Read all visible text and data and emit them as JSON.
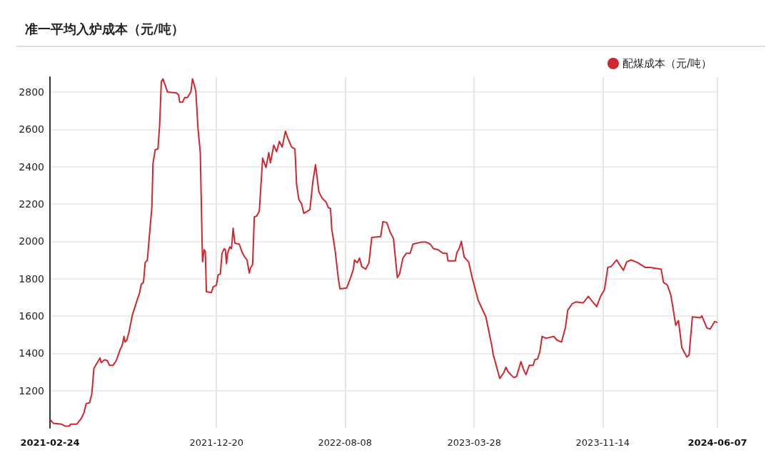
{
  "chart_data": {
    "type": "line",
    "title": "准一平均入炉成本（元/吨）",
    "x": [
      "2021-02-24",
      "2021-03-02",
      "2021-03-17",
      "2021-03-23",
      "2021-03-31",
      "2021-04-02",
      "2021-04-13",
      "2021-04-21",
      "2021-04-26",
      "2021-04-30",
      "2021-05-06",
      "2021-05-10",
      "2021-05-14",
      "2021-05-23",
      "2021-05-25",
      "2021-05-27",
      "2021-06-02",
      "2021-06-07",
      "2021-06-11",
      "2021-06-17",
      "2021-06-23",
      "2021-06-30",
      "2021-07-04",
      "2021-07-07",
      "2021-07-09",
      "2021-07-12",
      "2021-07-16",
      "2021-07-22",
      "2021-07-29",
      "2021-08-04",
      "2021-08-07",
      "2021-08-11",
      "2021-08-14",
      "2021-08-18",
      "2021-08-23",
      "2021-08-26",
      "2021-08-28",
      "2021-09-01",
      "2021-09-06",
      "2021-09-09",
      "2021-09-12",
      "2021-09-15",
      "2021-09-23",
      "2021-10-09",
      "2021-10-13",
      "2021-10-15",
      "2021-10-20",
      "2021-10-24",
      "2021-10-29",
      "2021-11-04",
      "2021-11-07",
      "2021-11-10",
      "2021-11-13",
      "2021-11-17",
      "2021-11-21",
      "2021-11-23",
      "2021-11-25",
      "2021-11-28",
      "2021-11-30",
      "2021-12-02",
      "2021-12-11",
      "2021-12-14",
      "2021-12-20",
      "2021-12-23",
      "2021-12-27",
      "2021-12-30",
      "2022-01-03",
      "2022-01-05",
      "2022-01-07",
      "2022-01-09",
      "2022-01-13",
      "2022-01-16",
      "2022-01-19",
      "2022-01-22",
      "2022-01-30",
      "2022-02-05",
      "2022-02-09",
      "2022-02-13",
      "2022-02-17",
      "2022-02-19",
      "2022-02-23",
      "2022-02-26",
      "2022-03-02",
      "2022-03-07",
      "2022-03-13",
      "2022-03-19",
      "2022-03-24",
      "2022-03-27",
      "2022-04-02",
      "2022-04-07",
      "2022-04-12",
      "2022-04-17",
      "2022-04-23",
      "2022-04-27",
      "2022-05-04",
      "2022-05-10",
      "2022-05-13",
      "2022-05-17",
      "2022-05-22",
      "2022-05-26",
      "2022-06-01",
      "2022-06-06",
      "2022-06-11",
      "2022-06-16",
      "2022-06-22",
      "2022-06-28",
      "2022-07-05",
      "2022-07-09",
      "2022-07-13",
      "2022-07-15",
      "2022-07-21",
      "2022-07-27",
      "2022-07-30",
      "2022-08-11",
      "2022-08-18",
      "2022-08-23",
      "2022-08-25",
      "2022-08-30",
      "2022-09-03",
      "2022-09-07",
      "2022-09-14",
      "2022-09-20",
      "2022-09-25",
      "2022-10-11",
      "2022-10-15",
      "2022-10-22",
      "2022-10-28",
      "2022-11-03",
      "2022-11-10",
      "2022-11-14",
      "2022-11-20",
      "2022-11-26",
      "2022-12-03",
      "2022-12-08",
      "2022-12-22",
      "2023-01-01",
      "2023-01-08",
      "2023-01-14",
      "2023-01-22",
      "2023-01-31",
      "2023-02-07",
      "2023-02-09",
      "2023-02-22",
      "2023-02-25",
      "2023-03-01",
      "2023-03-05",
      "2023-03-10",
      "2023-03-18",
      "2023-03-24",
      "2023-04-04",
      "2023-04-18",
      "2023-04-29",
      "2023-05-01",
      "2023-05-13",
      "2023-05-20",
      "2023-05-24",
      "2023-05-28",
      "2023-06-07",
      "2023-06-12",
      "2023-06-20",
      "2023-06-25",
      "2023-06-29",
      "2023-07-05",
      "2023-07-12",
      "2023-07-15",
      "2023-07-20",
      "2023-07-24",
      "2023-07-28",
      "2023-08-04",
      "2023-08-18",
      "2023-08-24",
      "2023-09-01",
      "2023-09-08",
      "2023-09-12",
      "2023-09-20",
      "2023-09-27",
      "2023-10-10",
      "2023-10-19",
      "2023-10-27",
      "2023-11-03",
      "2023-11-10",
      "2023-11-17",
      "2023-11-23",
      "2023-11-29",
      "2023-12-09",
      "2023-12-14",
      "2023-12-21",
      "2023-12-27",
      "2024-01-04",
      "2024-01-16",
      "2024-01-29",
      "2024-02-07",
      "2024-02-27",
      "2024-03-02",
      "2024-03-09",
      "2024-03-15",
      "2024-03-19",
      "2024-03-24",
      "2024-03-29",
      "2024-04-04",
      "2024-04-13",
      "2024-04-17",
      "2024-04-23",
      "2024-05-07",
      "2024-05-10",
      "2024-05-19",
      "2024-05-25",
      "2024-06-02",
      "2024-06-07"
    ],
    "series": [
      {
        "name": "配煤成本（元/吨）",
        "color": "#d0262d",
        "values": [
          1045,
          1025,
          1020,
          1010,
          1010,
          1020,
          1020,
          1050,
          1080,
          1130,
          1135,
          1180,
          1320,
          1365,
          1375,
          1350,
          1365,
          1360,
          1335,
          1335,
          1360,
          1420,
          1445,
          1490,
          1460,
          1470,
          1515,
          1605,
          1670,
          1725,
          1770,
          1780,
          1885,
          1900,
          2080,
          2180,
          2415,
          2490,
          2495,
          2625,
          2855,
          2870,
          2800,
          2795,
          2785,
          2745,
          2745,
          2770,
          2770,
          2800,
          2870,
          2840,
          2805,
          2600,
          2475,
          2180,
          1890,
          1955,
          1945,
          1730,
          1725,
          1755,
          1765,
          1820,
          1825,
          1935,
          1960,
          1955,
          1880,
          1935,
          1970,
          1960,
          2070,
          1990,
          1985,
          1935,
          1915,
          1900,
          1830,
          1855,
          1875,
          2130,
          2135,
          2160,
          2445,
          2395,
          2475,
          2420,
          2515,
          2480,
          2535,
          2505,
          2590,
          2555,
          2505,
          2495,
          2305,
          2225,
          2200,
          2150,
          2160,
          2170,
          2315,
          2410,
          2265,
          2230,
          2210,
          2180,
          2175,
          2070,
          1955,
          1800,
          1745,
          1750,
          1805,
          1850,
          1900,
          1885,
          1910,
          1865,
          1850,
          1885,
          2020,
          2025,
          2105,
          2100,
          2050,
          2015,
          1805,
          1825,
          1910,
          1935,
          1935,
          1985,
          1995,
          1995,
          1985,
          1960,
          1955,
          1935,
          1935,
          1895,
          1895,
          1940,
          1960,
          2000,
          1915,
          1890,
          1810,
          1685,
          1595,
          1435,
          1395,
          1265,
          1295,
          1325,
          1300,
          1270,
          1275,
          1355,
          1310,
          1285,
          1335,
          1335,
          1365,
          1370,
          1410,
          1490,
          1480,
          1490,
          1470,
          1460,
          1540,
          1630,
          1665,
          1675,
          1670,
          1705,
          1675,
          1650,
          1705,
          1740,
          1860,
          1865,
          1900,
          1875,
          1845,
          1890,
          1900,
          1885,
          1860,
          1860,
          1850,
          1780,
          1765,
          1715,
          1645,
          1550,
          1575,
          1430,
          1380,
          1390,
          1595,
          1590,
          1600,
          1535,
          1530,
          1570,
          1565
        ]
      }
    ],
    "xlim": [
      "2021-02-24",
      "2024-06-07"
    ],
    "xticks": [
      "2021-02-24",
      "2021-12-20",
      "2022-08-08",
      "2023-03-28",
      "2023-11-14",
      "2024-06-07"
    ],
    "ylim": [
      1000,
      2880
    ],
    "yticks": [
      1200,
      1400,
      1600,
      1800,
      2000,
      2200,
      2400,
      2600,
      2800
    ],
    "grid": true,
    "legend": "top right",
    "marker": "none",
    "line_style": "solid"
  }
}
